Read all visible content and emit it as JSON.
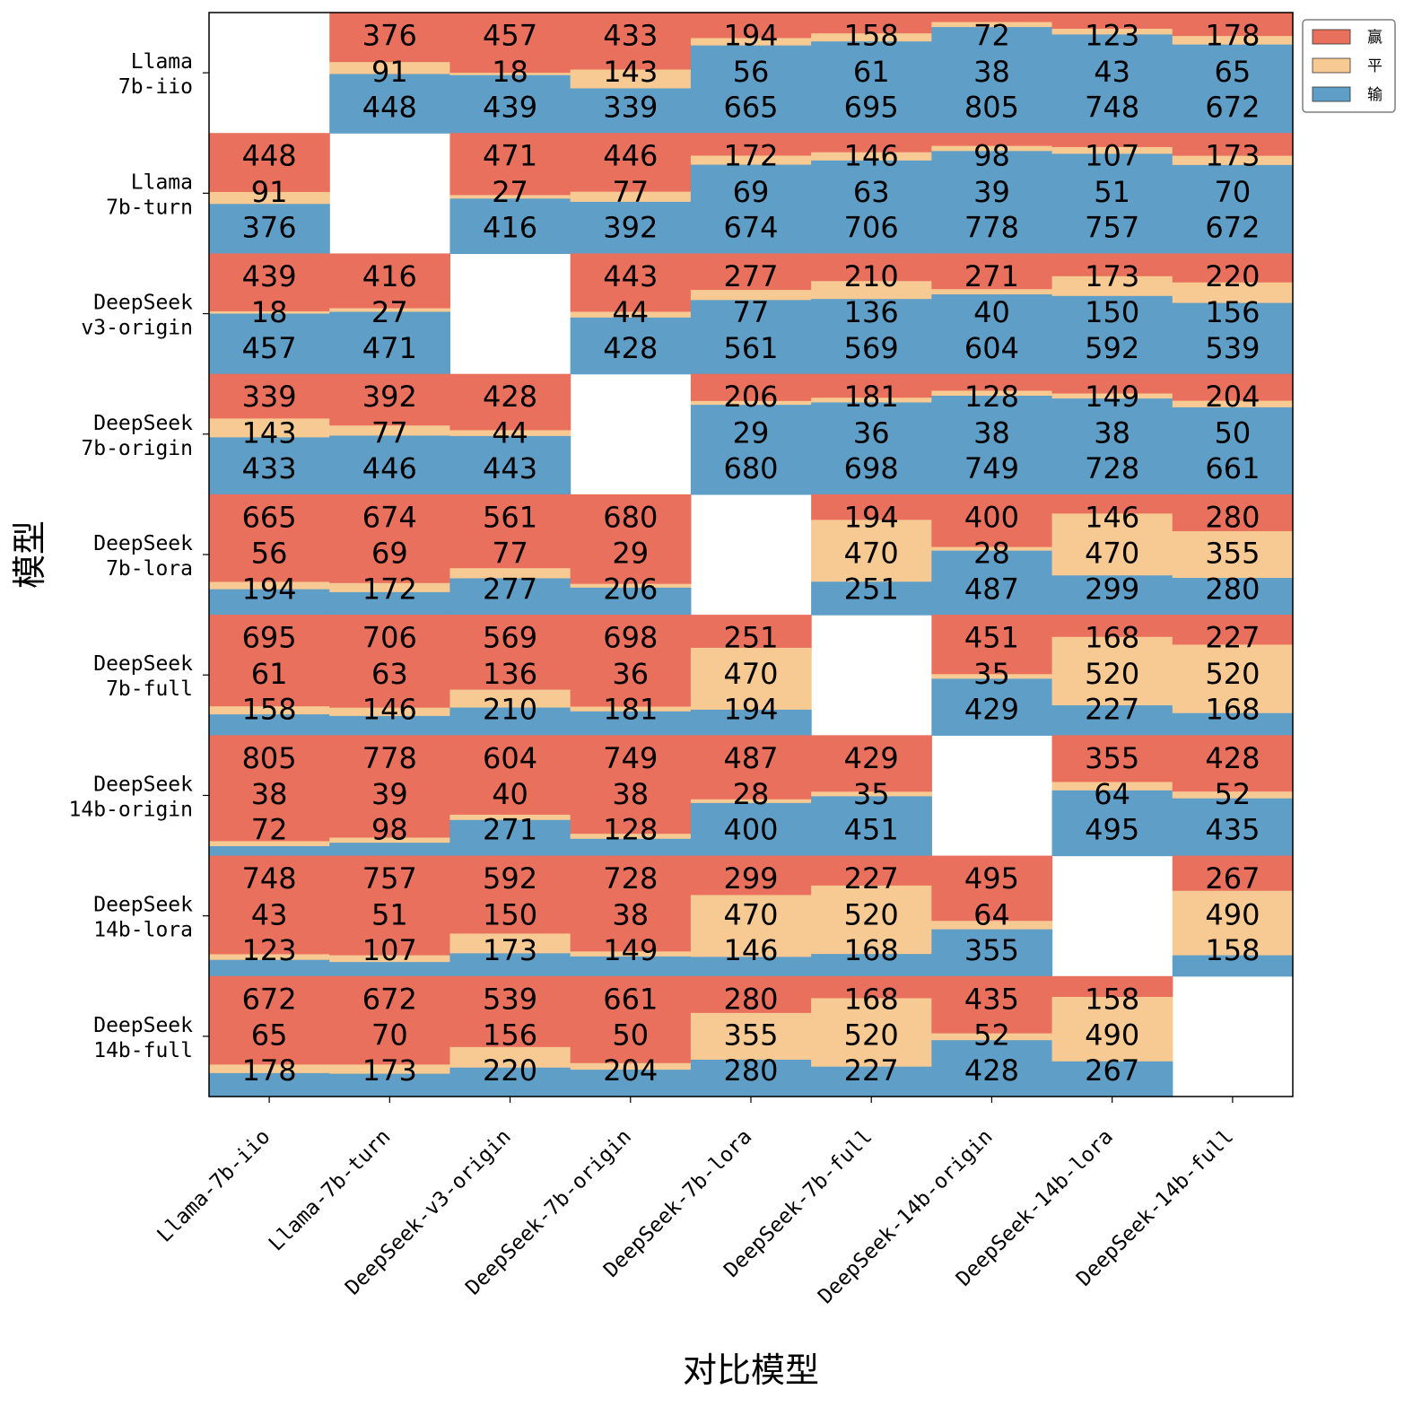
{
  "chart_data": {
    "type": "heatmap",
    "variant": "stacked-tile-matrix",
    "xlabel": "对比模型",
    "ylabel": "模型",
    "row_labels": [
      [
        "Llama",
        "7b-iio"
      ],
      [
        "Llama",
        "7b-turn"
      ],
      [
        "DeepSeek",
        "v3-origin"
      ],
      [
        "DeepSeek",
        "7b-origin"
      ],
      [
        "DeepSeek",
        "7b-lora"
      ],
      [
        "DeepSeek",
        "7b-full"
      ],
      [
        "DeepSeek",
        "14b-origin"
      ],
      [
        "DeepSeek",
        "14b-lora"
      ],
      [
        "DeepSeek",
        "14b-full"
      ]
    ],
    "col_labels": [
      "Llama-7b-iio",
      "Llama-7b-turn",
      "DeepSeek-v3-origin",
      "DeepSeek-7b-origin",
      "DeepSeek-7b-lora",
      "DeepSeek-7b-full",
      "DeepSeek-14b-origin",
      "DeepSeek-14b-lora",
      "DeepSeek-14b-full"
    ],
    "legend": [
      {
        "name": "赢",
        "color": "#e8705c"
      },
      {
        "name": "平",
        "color": "#f7c993"
      },
      {
        "name": "输",
        "color": "#5f9ec6"
      }
    ],
    "legend_position": "outside-top-right",
    "cells": [
      [
        null,
        [
          376,
          91,
          448
        ],
        [
          457,
          18,
          439
        ],
        [
          433,
          143,
          339
        ],
        [
          194,
          56,
          665
        ],
        [
          158,
          61,
          695
        ],
        [
          72,
          38,
          805
        ],
        [
          123,
          43,
          748
        ],
        [
          178,
          65,
          672
        ]
      ],
      [
        [
          448,
          91,
          376
        ],
        null,
        [
          471,
          27,
          416
        ],
        [
          446,
          77,
          392
        ],
        [
          172,
          69,
          674
        ],
        [
          146,
          63,
          706
        ],
        [
          98,
          39,
          778
        ],
        [
          107,
          51,
          757
        ],
        [
          173,
          70,
          672
        ]
      ],
      [
        [
          439,
          18,
          457
        ],
        [
          416,
          27,
          471
        ],
        null,
        [
          443,
          44,
          428
        ],
        [
          277,
          77,
          561
        ],
        [
          210,
          136,
          569
        ],
        [
          271,
          40,
          604
        ],
        [
          173,
          150,
          592
        ],
        [
          220,
          156,
          539
        ]
      ],
      [
        [
          339,
          143,
          433
        ],
        [
          392,
          77,
          446
        ],
        [
          428,
          44,
          443
        ],
        null,
        [
          206,
          29,
          680
        ],
        [
          181,
          36,
          698
        ],
        [
          128,
          38,
          749
        ],
        [
          149,
          38,
          728
        ],
        [
          204,
          50,
          661
        ]
      ],
      [
        [
          665,
          56,
          194
        ],
        [
          674,
          69,
          172
        ],
        [
          561,
          77,
          277
        ],
        [
          680,
          29,
          206
        ],
        null,
        [
          194,
          470,
          251
        ],
        [
          400,
          28,
          487
        ],
        [
          146,
          470,
          299
        ],
        [
          280,
          355,
          280
        ]
      ],
      [
        [
          695,
          61,
          158
        ],
        [
          706,
          63,
          146
        ],
        [
          569,
          136,
          210
        ],
        [
          698,
          36,
          181
        ],
        [
          251,
          470,
          194
        ],
        null,
        [
          451,
          35,
          429
        ],
        [
          168,
          520,
          227
        ],
        [
          227,
          520,
          168
        ]
      ],
      [
        [
          805,
          38,
          72
        ],
        [
          778,
          39,
          98
        ],
        [
          604,
          40,
          271
        ],
        [
          749,
          38,
          128
        ],
        [
          487,
          28,
          400
        ],
        [
          429,
          35,
          451
        ],
        null,
        [
          355,
          64,
          495
        ],
        [
          428,
          52,
          435
        ]
      ],
      [
        [
          748,
          43,
          123
        ],
        [
          757,
          51,
          107
        ],
        [
          592,
          150,
          173
        ],
        [
          728,
          38,
          149
        ],
        [
          299,
          470,
          146
        ],
        [
          227,
          520,
          168
        ],
        [
          495,
          64,
          355
        ],
        null,
        [
          267,
          490,
          158
        ]
      ],
      [
        [
          672,
          65,
          178
        ],
        [
          672,
          70,
          173
        ],
        [
          539,
          156,
          220
        ],
        [
          661,
          50,
          204
        ],
        [
          280,
          355,
          280
        ],
        [
          168,
          520,
          227
        ],
        [
          435,
          52,
          428
        ],
        [
          158,
          490,
          267
        ],
        null
      ]
    ]
  }
}
